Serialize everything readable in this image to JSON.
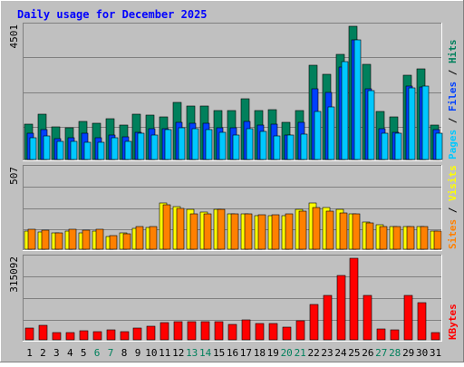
{
  "title": "Daily usage for December 2025",
  "colors": {
    "background": "#c0c0c0",
    "title": "#0000ff",
    "hits": "#00805c",
    "files": "#0040ff",
    "pages": "#00c8ff",
    "visits": "#ffff00",
    "sites": "#ff8000",
    "kbytes": "#ff0000",
    "weekend_day": "#00805c",
    "weekday": "#000000"
  },
  "chart_data": [
    {
      "type": "bar",
      "panel": "hits",
      "ymax_label": "4501",
      "ylim": [
        0,
        4501
      ],
      "legend": [
        "Pages",
        "Files",
        "Hits"
      ],
      "categories": [
        "1",
        "2",
        "3",
        "4",
        "5",
        "6",
        "7",
        "8",
        "9",
        "10",
        "11",
        "12",
        "13",
        "14",
        "15",
        "16",
        "17",
        "18",
        "19",
        "20",
        "21",
        "22",
        "23",
        "24",
        "25",
        "26",
        "27",
        "28",
        "29",
        "30",
        "31"
      ],
      "series": [
        {
          "name": "Hits",
          "values": [
            1200,
            1530,
            1100,
            1080,
            1290,
            1230,
            1380,
            1160,
            1530,
            1510,
            1440,
            1940,
            1800,
            1800,
            1660,
            1660,
            2050,
            1660,
            1690,
            1260,
            1660,
            3190,
            2890,
            3550,
            4501,
            3220,
            1630,
            1440,
            2860,
            3060,
            1150
          ]
        },
        {
          "name": "Files",
          "values": [
            880,
            1000,
            700,
            740,
            890,
            720,
            820,
            760,
            910,
            1030,
            1050,
            1270,
            1240,
            1240,
            1080,
            1080,
            1300,
            1150,
            1180,
            840,
            1250,
            2400,
            2280,
            3130,
            4040,
            2390,
            1030,
            920,
            2490,
            2460,
            1000
          ]
        },
        {
          "name": "Pages",
          "values": [
            720,
            790,
            620,
            620,
            590,
            580,
            720,
            620,
            880,
            840,
            1020,
            1080,
            1050,
            1010,
            930,
            830,
            1030,
            960,
            800,
            820,
            860,
            1630,
            1780,
            3310,
            4040,
            2340,
            900,
            880,
            2420,
            2480,
            900
          ]
        }
      ]
    },
    {
      "type": "bar",
      "panel": "visits",
      "ymax_label": "507",
      "ylim": [
        0,
        507
      ],
      "legend": [
        "Sites",
        "Visits"
      ],
      "categories": [
        "1",
        "2",
        "3",
        "4",
        "5",
        "6",
        "7",
        "8",
        "9",
        "10",
        "11",
        "12",
        "13",
        "14",
        "15",
        "16",
        "17",
        "18",
        "19",
        "20",
        "21",
        "22",
        "23",
        "24",
        "25",
        "26",
        "27",
        "28",
        "29",
        "30",
        "31"
      ],
      "series": [
        {
          "name": "Visits",
          "values": [
            112,
            110,
            100,
            112,
            100,
            112,
            80,
            100,
            130,
            135,
            290,
            270,
            250,
            235,
            250,
            220,
            220,
            210,
            210,
            210,
            250,
            290,
            260,
            250,
            220,
            170,
            155,
            140,
            140,
            140,
            112
          ]
        },
        {
          "name": "Sites",
          "values": [
            125,
            122,
            102,
            125,
            120,
            125,
            84,
            97,
            140,
            140,
            280,
            255,
            220,
            220,
            250,
            220,
            220,
            215,
            215,
            220,
            240,
            260,
            240,
            230,
            220,
            165,
            145,
            140,
            140,
            140,
            112
          ]
        }
      ]
    },
    {
      "type": "bar",
      "panel": "kbytes",
      "ymax_label": "315092",
      "ylim": [
        0,
        315092
      ],
      "legend": [
        "KBytes"
      ],
      "categories": [
        "1",
        "2",
        "3",
        "4",
        "5",
        "6",
        "7",
        "8",
        "9",
        "10",
        "11",
        "12",
        "13",
        "14",
        "15",
        "16",
        "17",
        "18",
        "19",
        "20",
        "21",
        "22",
        "23",
        "24",
        "25",
        "26",
        "27",
        "28",
        "29",
        "30",
        "31"
      ],
      "series": [
        {
          "name": "KBytes",
          "values": [
            45000,
            55000,
            27000,
            28000,
            34000,
            32000,
            40000,
            33000,
            45000,
            52000,
            68000,
            70000,
            70000,
            70000,
            70000,
            58000,
            77000,
            63000,
            63000,
            50000,
            75000,
            137000,
            170000,
            250000,
            315092,
            170000,
            42000,
            40000,
            170000,
            145000,
            27000
          ]
        }
      ]
    }
  ],
  "x_axis": {
    "days": [
      "1",
      "2",
      "3",
      "4",
      "5",
      "6",
      "7",
      "8",
      "9",
      "10",
      "11",
      "12",
      "13",
      "14",
      "15",
      "16",
      "17",
      "18",
      "19",
      "20",
      "21",
      "22",
      "23",
      "24",
      "25",
      "26",
      "27",
      "28",
      "29",
      "30",
      "31"
    ],
    "weekend_days": [
      "6",
      "7",
      "13",
      "14",
      "20",
      "21",
      "27",
      "28"
    ]
  }
}
